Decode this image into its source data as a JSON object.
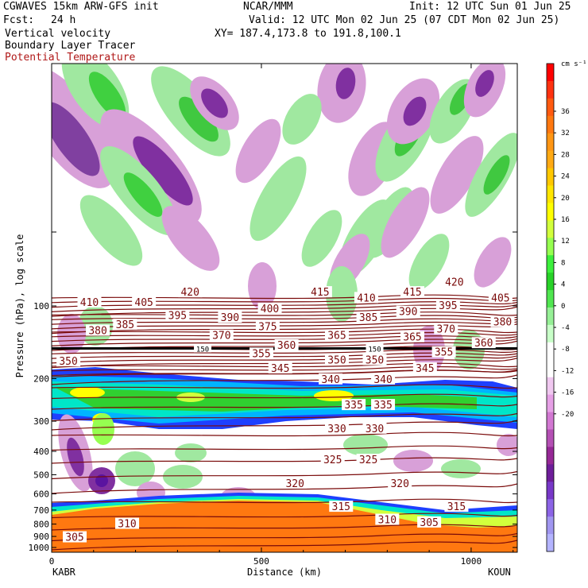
{
  "header": {
    "model": "CGWAVES 15km ARW-GFS init",
    "org": "NCAR/MMM",
    "init": "Init: 12 UTC Sun 01 Jun 25",
    "fcst_label": "Fcst:",
    "fcst_value": "24 h",
    "valid": "Valid: 12 UTC Mon 02 Jun 25 (07 CDT Mon 02 Jun 25)",
    "field1": "Vertical velocity",
    "field2": "Boundary Layer Tracer",
    "field3": "Potential Temperature",
    "xy": "XY= 187.4,173.8 to 191.8,100.1"
  },
  "colors": {
    "theta": "#7a0a0a",
    "header_red": "#b01818"
  },
  "chart_data": {
    "type": "heatmap",
    "title": "",
    "xlabel": "Distance (km)",
    "ylabel": "Pressure (hPa), log scale",
    "x_range": [
      0,
      1110
    ],
    "x_ticks": [
      0,
      500,
      1000
    ],
    "x_endpoints": {
      "left": "KABR",
      "right": "KOUN"
    },
    "y_ticks": [
      100,
      200,
      300,
      400,
      500,
      600,
      700,
      800,
      900,
      1000
    ],
    "colorbar": {
      "unit": "cm s⁻¹",
      "labels": [
        36,
        32,
        28,
        24,
        20,
        16,
        12,
        8,
        4,
        0,
        -4,
        -8,
        -12,
        -16,
        -20
      ],
      "colors": [
        "#ff0000",
        "#ff3210",
        "#ff5a10",
        "#ff7810",
        "#ff9614",
        "#ffaa14",
        "#ffc800",
        "#ffe600",
        "#ffff00",
        "#d2ff3c",
        "#96ff50",
        "#3cf03c",
        "#28d228",
        "#50e650",
        "#96f096",
        "#c8ffc8",
        "#ffffff",
        "#ffffff",
        "#f0c8f0",
        "#e6a0e6",
        "#d278d2",
        "#b450b4",
        "#962896",
        "#6e1e9a",
        "#7838c8",
        "#8c64e6",
        "#a096f0",
        "#b4b4ff"
      ]
    },
    "theta_labels": [
      {
        "value": 420,
        "x": 330,
        "y": 88
      },
      {
        "value": 415,
        "x": 640,
        "y": 88
      },
      {
        "value": 420,
        "x": 960,
        "y": 80
      },
      {
        "value": 410,
        "x": 90,
        "y": 97
      },
      {
        "value": 405,
        "x": 220,
        "y": 97
      },
      {
        "value": 400,
        "x": 520,
        "y": 103
      },
      {
        "value": 410,
        "x": 750,
        "y": 93
      },
      {
        "value": 415,
        "x": 860,
        "y": 88
      },
      {
        "value": 395,
        "x": 945,
        "y": 100
      },
      {
        "value": 405,
        "x": 1070,
        "y": 93
      },
      {
        "value": 395,
        "x": 300,
        "y": 110
      },
      {
        "value": 390,
        "x": 425,
        "y": 112
      },
      {
        "value": 385,
        "x": 755,
        "y": 112
      },
      {
        "value": 390,
        "x": 850,
        "y": 106
      },
      {
        "value": 380,
        "x": 1075,
        "y": 117
      },
      {
        "value": 385,
        "x": 175,
        "y": 120
      },
      {
        "value": 380,
        "x": 110,
        "y": 127
      },
      {
        "value": 375,
        "x": 515,
        "y": 122
      },
      {
        "value": 370,
        "x": 940,
        "y": 125
      },
      {
        "value": 370,
        "x": 405,
        "y": 133
      },
      {
        "value": 365,
        "x": 680,
        "y": 133
      },
      {
        "value": 365,
        "x": 860,
        "y": 135
      },
      {
        "value": 360,
        "x": 1030,
        "y": 143
      },
      {
        "value": 360,
        "x": 560,
        "y": 146
      },
      {
        "value": 355,
        "x": 500,
        "y": 158
      },
      {
        "value": 355,
        "x": 935,
        "y": 156
      },
      {
        "value": 350,
        "x": 680,
        "y": 168
      },
      {
        "value": 350,
        "x": 770,
        "y": 168
      },
      {
        "value": 350,
        "x": 40,
        "y": 170
      },
      {
        "value": 345,
        "x": 545,
        "y": 182
      },
      {
        "value": 345,
        "x": 890,
        "y": 182
      },
      {
        "value": 340,
        "x": 665,
        "y": 202
      },
      {
        "value": 340,
        "x": 790,
        "y": 202
      },
      {
        "value": 335,
        "x": 720,
        "y": 258
      },
      {
        "value": 335,
        "x": 790,
        "y": 258
      },
      {
        "value": 330,
        "x": 680,
        "y": 323
      },
      {
        "value": 330,
        "x": 770,
        "y": 323
      },
      {
        "value": 325,
        "x": 670,
        "y": 435
      },
      {
        "value": 325,
        "x": 755,
        "y": 435
      },
      {
        "value": 320,
        "x": 580,
        "y": 545
      },
      {
        "value": 320,
        "x": 830,
        "y": 545
      },
      {
        "value": 315,
        "x": 690,
        "y": 680
      },
      {
        "value": 315,
        "x": 965,
        "y": 680
      },
      {
        "value": 310,
        "x": 180,
        "y": 800
      },
      {
        "value": 310,
        "x": 800,
        "y": 770
      },
      {
        "value": 305,
        "x": 900,
        "y": 790
      },
      {
        "value": 305,
        "x": 55,
        "y": 910
      }
    ],
    "tropopause_labels": [
      {
        "value": 150,
        "x": 360,
        "y": 150
      },
      {
        "value": 150,
        "x": 770,
        "y": 150
      }
    ]
  }
}
